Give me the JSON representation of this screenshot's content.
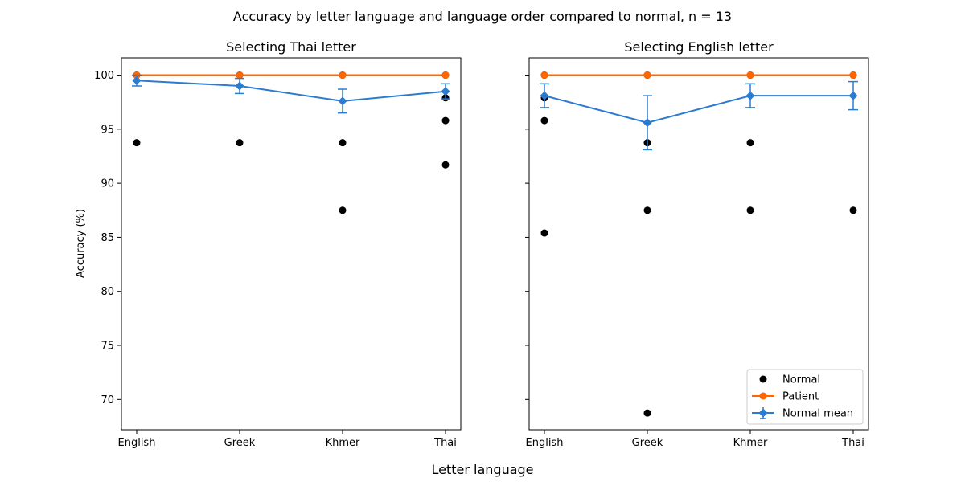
{
  "figure": {
    "suptitle": "Accuracy by letter language and language order compared to normal, n = 13",
    "xlabel": "Letter language",
    "ylabel": "Accuracy (%)"
  },
  "legend": {
    "placement": "lower-right",
    "items": [
      {
        "key": "normal",
        "label": "Normal"
      },
      {
        "key": "patient",
        "label": "Patient"
      },
      {
        "key": "normal_mean",
        "label": "Normal mean"
      }
    ]
  },
  "colors": {
    "normal": "#000000",
    "patient": "#ff6600",
    "normal_mean": "#2b7bd0"
  },
  "chart_data": [
    {
      "type": "scatter",
      "title": "Selecting Thai letter",
      "categories": [
        "English",
        "Greek",
        "Khmer",
        "Thai"
      ],
      "ylim": [
        67.2,
        101.6
      ],
      "yticks": [
        70,
        75,
        80,
        85,
        90,
        95,
        100
      ],
      "series": [
        {
          "name": "Normal",
          "kind": "points",
          "points": [
            {
              "x": "English",
              "y": 100
            },
            {
              "x": "English",
              "y": 93.75
            },
            {
              "x": "Greek",
              "y": 100
            },
            {
              "x": "Greek",
              "y": 93.75
            },
            {
              "x": "Khmer",
              "y": 100
            },
            {
              "x": "Khmer",
              "y": 93.75
            },
            {
              "x": "Khmer",
              "y": 87.5
            },
            {
              "x": "Thai",
              "y": 100
            },
            {
              "x": "Thai",
              "y": 97.9
            },
            {
              "x": "Thai",
              "y": 95.8
            },
            {
              "x": "Thai",
              "y": 91.7
            }
          ]
        },
        {
          "name": "Patient",
          "kind": "line",
          "values": [
            100,
            100,
            100,
            100
          ]
        },
        {
          "name": "Normal mean",
          "kind": "errorbar",
          "values": [
            99.5,
            99.0,
            97.6,
            98.5
          ],
          "errors": [
            0.5,
            0.7,
            1.1,
            0.7
          ]
        }
      ]
    },
    {
      "type": "scatter",
      "title": "Selecting English letter",
      "categories": [
        "English",
        "Greek",
        "Khmer",
        "Thai"
      ],
      "ylim": [
        67.2,
        101.6
      ],
      "yticks": [
        70,
        75,
        80,
        85,
        90,
        95,
        100
      ],
      "series": [
        {
          "name": "Normal",
          "kind": "points",
          "points": [
            {
              "x": "English",
              "y": 100
            },
            {
              "x": "English",
              "y": 97.9
            },
            {
              "x": "English",
              "y": 95.8
            },
            {
              "x": "English",
              "y": 85.4
            },
            {
              "x": "Greek",
              "y": 100
            },
            {
              "x": "Greek",
              "y": 93.75
            },
            {
              "x": "Greek",
              "y": 87.5
            },
            {
              "x": "Greek",
              "y": 68.75
            },
            {
              "x": "Khmer",
              "y": 100
            },
            {
              "x": "Khmer",
              "y": 93.75
            },
            {
              "x": "Khmer",
              "y": 87.5
            },
            {
              "x": "Thai",
              "y": 100
            },
            {
              "x": "Thai",
              "y": 87.5
            }
          ]
        },
        {
          "name": "Patient",
          "kind": "line",
          "values": [
            100,
            100,
            100,
            100
          ]
        },
        {
          "name": "Normal mean",
          "kind": "errorbar",
          "values": [
            98.1,
            95.6,
            98.1,
            98.1
          ],
          "errors": [
            1.1,
            2.5,
            1.1,
            1.3
          ]
        }
      ]
    }
  ]
}
